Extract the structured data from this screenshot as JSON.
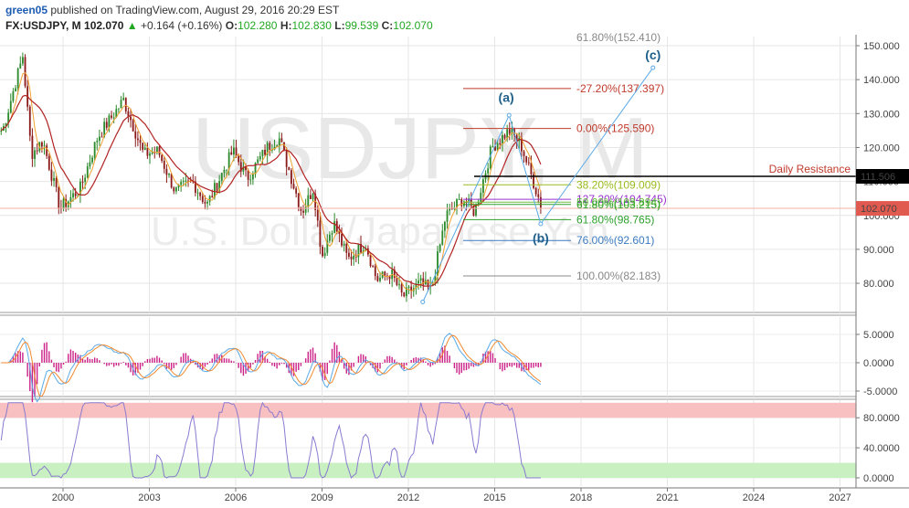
{
  "header": {
    "user": "green05",
    "published": "published on TradingView.com, August 29, 2016 20:29 EST",
    "symbol": "FX:USDJPY, M",
    "last": "102.070",
    "change_arrow": "▲",
    "change": "+0.164 (+0.16%)",
    "o_label": "O:",
    "o_value": "102.280",
    "h_label": "H:",
    "h_value": "102.830",
    "l_label": "L:",
    "l_value": "99.539",
    "c_label": "C:",
    "c_value": "102.070"
  },
  "watermark": {
    "symbol": "USDJPY, M",
    "description": "U.S. Dollar/Japanese Yen"
  },
  "colors": {
    "bull": "#2b8a2b",
    "bear": "#8b1a1a",
    "ma_fast": "#f0a030",
    "ma_slow": "#b22222",
    "resistance": "#000000",
    "fib_extension": "#c0392b",
    "fib_38": "#9abc1e",
    "fib_50": "#6abf3a",
    "fib_61": "#2ca02c",
    "fib_76": "#3a7ac0",
    "fib_100": "#888888",
    "price_label": "#e05a50",
    "macd": "#5aa9e6",
    "signal": "#f08a30",
    "histogram": "#cc2288",
    "stoch": "#8a7ad0",
    "overbought": "#f8c0c0",
    "oversold": "#c8f0c0"
  },
  "chart_data": [
    {
      "type": "candlestick",
      "name": "price",
      "title": "FX:USDJPY, M",
      "x_range": [
        1997.8,
        2024.0
      ],
      "ylim": [
        70,
        152
      ],
      "y_ticks": [
        "150.000",
        "140.000",
        "130.000",
        "120.000",
        "110.000",
        "100.000",
        "90.000",
        "80.000"
      ],
      "x_ticks": [
        "2000",
        "2003",
        "2006",
        "2009",
        "2012",
        "2015",
        "2018",
        "2021",
        "2024",
        "2027"
      ],
      "last_price": "102.070",
      "anchors": [
        [
          1997.9,
          125
        ],
        [
          1998.6,
          147
        ],
        [
          1998.9,
          118
        ],
        [
          1999.3,
          122
        ],
        [
          1999.9,
          102
        ],
        [
          2000.6,
          108
        ],
        [
          2001.2,
          123
        ],
        [
          2002.1,
          134
        ],
        [
          2002.8,
          118
        ],
        [
          2003.3,
          119
        ],
        [
          2003.9,
          107
        ],
        [
          2004.5,
          110
        ],
        [
          2005.0,
          103
        ],
        [
          2005.9,
          119
        ],
        [
          2006.4,
          111
        ],
        [
          2007.1,
          120
        ],
        [
          2007.5,
          123
        ],
        [
          2008.3,
          101
        ],
        [
          2008.7,
          108
        ],
        [
          2009.0,
          88
        ],
        [
          2009.4,
          98
        ],
        [
          2009.9,
          87
        ],
        [
          2010.5,
          92
        ],
        [
          2010.9,
          81
        ],
        [
          2011.4,
          83
        ],
        [
          2011.8,
          76
        ],
        [
          2012.4,
          80
        ],
        [
          2012.8,
          78
        ],
        [
          2013.3,
          100
        ],
        [
          2013.9,
          105
        ],
        [
          2014.3,
          101
        ],
        [
          2014.9,
          120
        ],
        [
          2015.5,
          125
        ],
        [
          2015.9,
          121
        ],
        [
          2016.3,
          111
        ],
        [
          2016.65,
          102
        ]
      ],
      "resistance": {
        "label": "Daily Resistance",
        "value": "111.506",
        "y": 111.506
      },
      "fibs": [
        {
          "label": "61.80%(152.410)",
          "y": 152.41,
          "color": "#888888"
        },
        {
          "label": "-27.20%(137.397)",
          "y": 137.397,
          "color": "#c0392b"
        },
        {
          "label": "0.00%(125.590)",
          "y": 125.59,
          "color": "#c0392b"
        },
        {
          "label": "38.20%(109.009)",
          "y": 109.009,
          "color": "#9abc1e"
        },
        {
          "label": "127.20%(104.745)",
          "y": 104.745,
          "color": "#9b30d0"
        },
        {
          "label": "50.00%(103.894)",
          "y": 103.894,
          "color": "#6abf3a"
        },
        {
          "label": "61.80%(103.215)",
          "y": 103.215,
          "color": "#2ca02c"
        },
        {
          "label": "61.80%(98.765)",
          "y": 98.765,
          "color": "#2ca02c"
        },
        {
          "label": "76.00%(92.601)",
          "y": 92.601,
          "color": "#3a7ac0"
        },
        {
          "label": "100.00%(82.183)",
          "y": 82.183,
          "color": "#888888"
        }
      ],
      "waves": [
        {
          "label": "(a)",
          "x": 2015.4,
          "y": 133.5
        },
        {
          "label": "(b)",
          "x": 2016.6,
          "y": 92.0
        },
        {
          "label": "(c)",
          "x": 2020.5,
          "y": 146.0
        }
      ],
      "wave_path": [
        [
          2012.5,
          74.5
        ],
        [
          2015.5,
          129.5
        ],
        [
          2016.6,
          97.5
        ],
        [
          2020.5,
          143.5
        ]
      ]
    },
    {
      "type": "line",
      "name": "macd",
      "ylim": [
        -6,
        8
      ],
      "y_ticks": [
        "5.0000",
        "0.0000",
        "-5.0000"
      ]
    },
    {
      "type": "line",
      "name": "stochastic",
      "ylim": [
        0,
        100
      ],
      "y_ticks": [
        "80.0000",
        "40.0000",
        "0.0000"
      ],
      "overbought": 80,
      "oversold": 20
    }
  ]
}
